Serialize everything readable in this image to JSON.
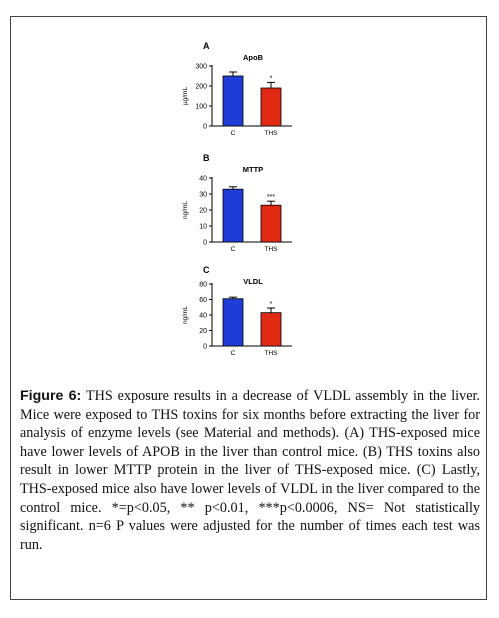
{
  "chart_data": [
    {
      "type": "bar",
      "panel_label": "A",
      "title": "ApoB",
      "ylabel": "µg/mL",
      "categories": [
        "C",
        "THS"
      ],
      "values": [
        250,
        190
      ],
      "errors": [
        20,
        28
      ],
      "significance": [
        "",
        "*"
      ],
      "colors": [
        "#1f3dd6",
        "#e02a14"
      ],
      "ylim": [
        0,
        300
      ],
      "yticks": [
        "0",
        "100",
        "200",
        "300"
      ],
      "ytick_values": [
        0,
        100,
        200,
        300
      ]
    },
    {
      "type": "bar",
      "panel_label": "B",
      "title": "MTTP",
      "ylabel": "ng/mL",
      "categories": [
        "C",
        "THS"
      ],
      "values": [
        33,
        23
      ],
      "errors": [
        1.5,
        2.5
      ],
      "significance": [
        "",
        "***"
      ],
      "colors": [
        "#1f3dd6",
        "#e02a14"
      ],
      "ylim": [
        0,
        40
      ],
      "yticks": [
        "0",
        "10",
        "20",
        "30",
        "40"
      ],
      "ytick_values": [
        0,
        10,
        20,
        30,
        40
      ]
    },
    {
      "type": "bar",
      "panel_label": "C",
      "title": "VLDL",
      "ylabel": "ng/mL",
      "categories": [
        "C",
        "THS"
      ],
      "values": [
        61,
        43
      ],
      "errors": [
        2,
        6
      ],
      "significance": [
        "",
        "*"
      ],
      "colors": [
        "#1f3dd6",
        "#e02a14"
      ],
      "ylim": [
        0,
        80
      ],
      "yticks": [
        "0",
        "20",
        "40",
        "60",
        "80"
      ],
      "ytick_values": [
        0,
        20,
        40,
        60,
        80
      ]
    }
  ],
  "caption": {
    "label": "Figure 6:",
    "text": " THS exposure results in a decrease of VLDL assembly in the liver. Mice were exposed to THS toxins for six months before extracting the liver for analysis of enzyme levels (see Material and methods). (A) THS-exposed mice have lower levels of APOB in the liver than control mice. (B) THS toxins also result in lower MTTP protein in the liver of THS-exposed mice. (C) Lastly, THS-exposed mice also have lower levels of VLDL in the liver compared to the control mice. *=p<0.05, ** p<0.01, ***p<0.0006, NS= Not statistically significant. n=6 P values were adjusted for the number of times each test was run."
  }
}
